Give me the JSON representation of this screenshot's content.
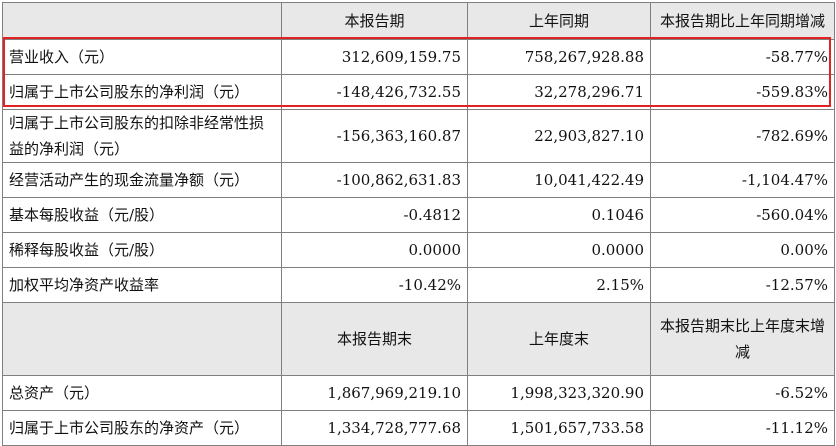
{
  "header1": [
    "",
    "本报告期",
    "上年同期",
    "本报告期比上年同期增减"
  ],
  "rows1": [
    {
      "label": "营业收入（元）",
      "current": "312,609,159.75",
      "prior": "758,267,928.88",
      "change": "-58.77%"
    },
    {
      "label": "归属于上市公司股东的净利润（元）",
      "current": "-148,426,732.55",
      "prior": "32,278,296.71",
      "change": "-559.83%"
    },
    {
      "label": "归属于上市公司股东的扣除非经常性损益的净利润（元）",
      "current": "-156,363,160.87",
      "prior": "22,903,827.10",
      "change": "-782.69%"
    },
    {
      "label": "经营活动产生的现金流量净额（元）",
      "current": "-100,862,631.83",
      "prior": "10,041,422.49",
      "change": "-1,104.47%"
    },
    {
      "label": "基本每股收益（元/股）",
      "current": "-0.4812",
      "prior": "0.1046",
      "change": "-560.04%"
    },
    {
      "label": "稀释每股收益（元/股）",
      "current": "0.0000",
      "prior": "0.0000",
      "change": "0.00%"
    },
    {
      "label": "加权平均净资产收益率",
      "current": "-10.42%",
      "prior": "2.15%",
      "change": "-12.57%"
    }
  ],
  "header2": [
    "",
    "本报告期末",
    "上年度末",
    "本报告期末比上年度末增减"
  ],
  "rows2": [
    {
      "label": "总资产（元）",
      "current": "1,867,969,219.10",
      "prior": "1,998,323,320.90",
      "change": "-6.52%"
    },
    {
      "label": "归属于上市公司股东的净资产（元）",
      "current": "1,334,728,777.68",
      "prior": "1,501,657,733.58",
      "change": "-11.12%"
    }
  ],
  "highlight_color": "#e02424"
}
